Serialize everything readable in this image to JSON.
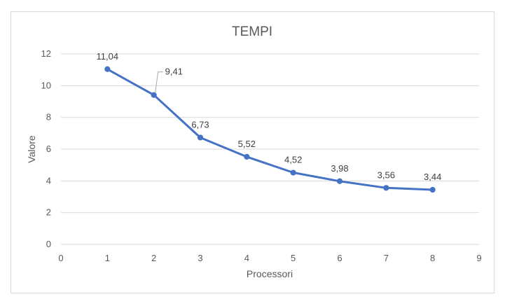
{
  "chart_data": {
    "type": "line",
    "title": "TEMPI",
    "xlabel": "Processori",
    "ylabel": "Valore",
    "xlim": [
      0,
      9
    ],
    "ylim": [
      0,
      12
    ],
    "xticks": [
      "0",
      "1",
      "2",
      "3",
      "4",
      "5",
      "6",
      "7",
      "8",
      "9"
    ],
    "yticks": [
      "0",
      "2",
      "4",
      "6",
      "8",
      "10",
      "12"
    ],
    "grid": true,
    "legend": "none",
    "series": [
      {
        "color": "#4472c4",
        "x": [
          1,
          2,
          3,
          4,
          5,
          6,
          7,
          8
        ],
        "y": [
          11.04,
          9.41,
          6.73,
          5.52,
          4.52,
          3.98,
          3.56,
          3.44
        ],
        "labels": [
          "11,04",
          "9,41",
          "6,73",
          "5,52",
          "4,52",
          "3,98",
          "3,56",
          "3,44"
        ]
      }
    ]
  }
}
